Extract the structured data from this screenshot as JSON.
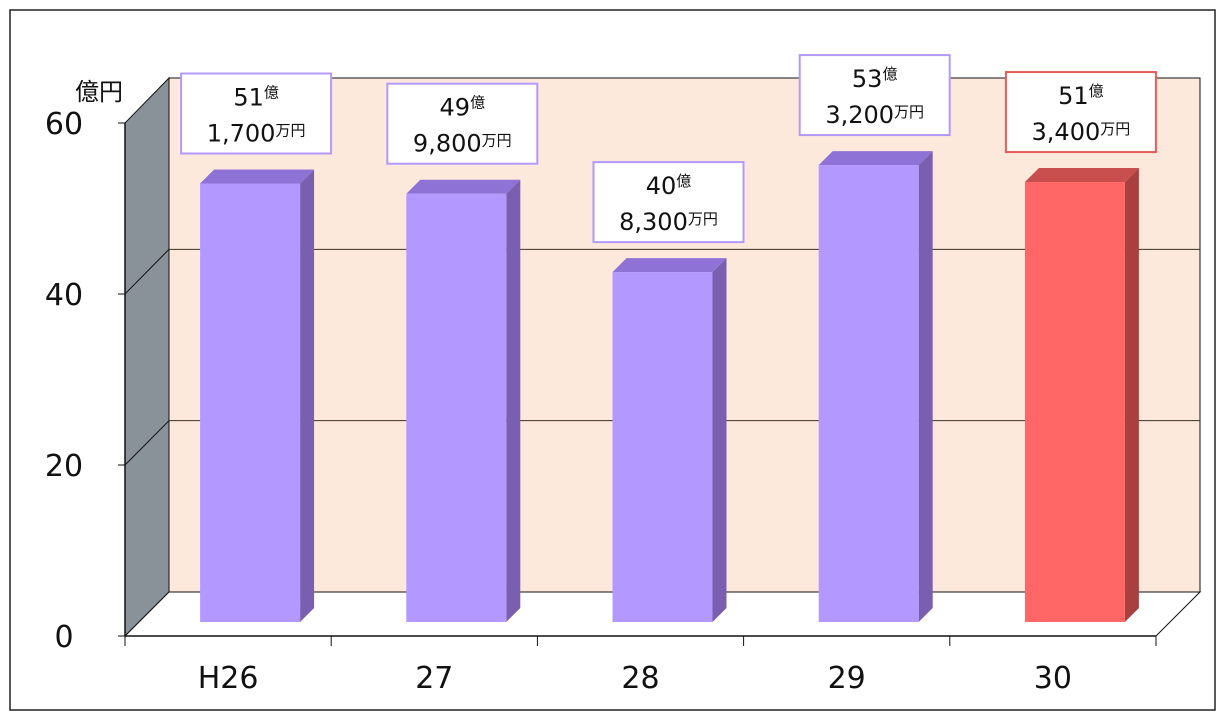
{
  "chart_data": {
    "type": "bar",
    "unit_label": "億円",
    "categories": [
      "H26",
      "27",
      "28",
      "29",
      "30"
    ],
    "values": [
      51.17,
      49.98,
      40.83,
      53.32,
      51.34
    ],
    "ylim": [
      0,
      60
    ],
    "yticks": [
      "0",
      "20",
      "40",
      "60"
    ],
    "data_labels": [
      {
        "oku": "51",
        "oku_unit": "億",
        "man": "1,700",
        "man_unit": "万円"
      },
      {
        "oku": "49",
        "oku_unit": "億",
        "man": "9,800",
        "man_unit": "万円"
      },
      {
        "oku": "40",
        "oku_unit": "億",
        "man": "8,300",
        "man_unit": "万円"
      },
      {
        "oku": "53",
        "oku_unit": "億",
        "man": "3,200",
        "man_unit": "万円"
      },
      {
        "oku": "51",
        "oku_unit": "億",
        "man": "3,400",
        "man_unit": "万円"
      }
    ],
    "highlight_index": 4,
    "grid": true,
    "colors": {
      "bar": "#b399ff",
      "bar_side": "#7a5fb0",
      "bar_top": "#8f72d6",
      "highlight": "#ff6666",
      "highlight_side": "#a84040",
      "highlight_top": "#c94f4f",
      "back_wall": "#fde9db",
      "side_wall": "#8a9299",
      "label_border": "#b399ff",
      "highlight_label_border": "#e85a5a"
    }
  }
}
